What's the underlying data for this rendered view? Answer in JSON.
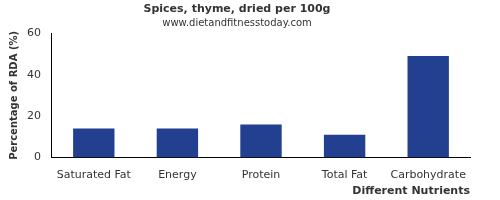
{
  "chart_data": {
    "type": "bar",
    "title": "Spices, thyme, dried per 100g",
    "subtitle": "www.dietandfitnesstoday.com",
    "x_label": "Different Nutrients",
    "y_label": "Percentage of RDA (%)",
    "categories": [
      "Saturated Fat",
      "Energy",
      "Protein",
      "Total Fat",
      "Carbohydrate"
    ],
    "values": [
      14,
      14,
      16,
      11,
      49
    ],
    "color": "#233f8f",
    "ylim": [
      0,
      60
    ],
    "yticks": [
      0,
      20,
      40,
      60
    ],
    "grid": false
  }
}
